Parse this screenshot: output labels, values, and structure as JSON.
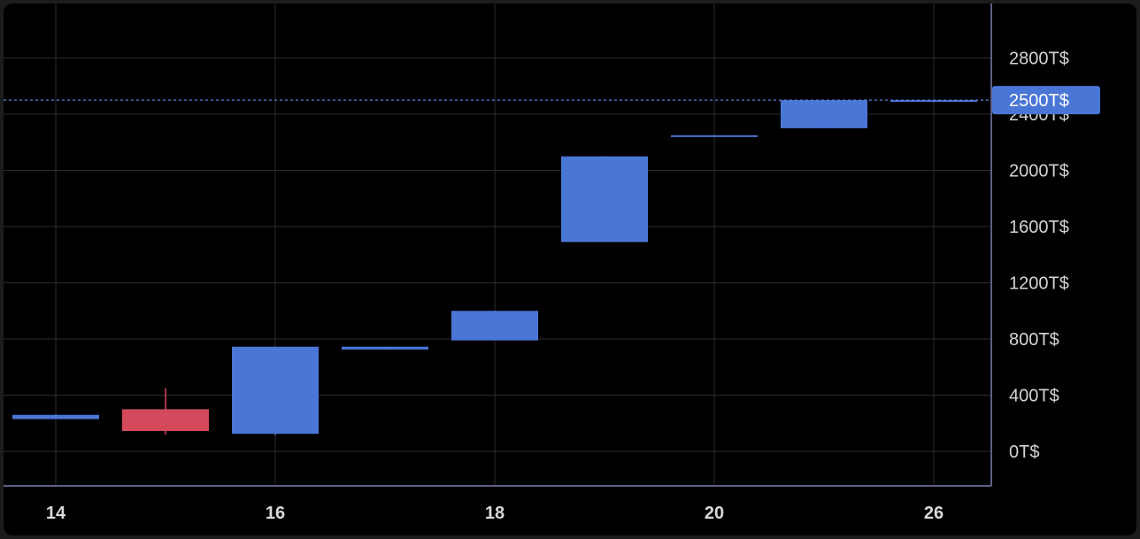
{
  "chart_data": {
    "type": "candlestick",
    "currency_suffix": "T$",
    "x_ticks": [
      "14",
      "16",
      "18",
      "20",
      "26"
    ],
    "y_ticks": [
      "0T$",
      "400T$",
      "800T$",
      "1200T$",
      "1600T$",
      "2000T$",
      "2400T$",
      "2800T$"
    ],
    "y_tick_values": [
      0,
      400,
      800,
      1200,
      1600,
      2000,
      2400,
      2800
    ],
    "ylim": [
      -250,
      3150
    ],
    "grid": true,
    "candles": [
      {
        "index": 0,
        "open": 230,
        "close": 260,
        "high": 260,
        "low": 230
      },
      {
        "index": 1,
        "open": 300,
        "close": 145,
        "high": 450,
        "low": 120
      },
      {
        "index": 2,
        "open": 125,
        "close": 745,
        "high": 745,
        "low": 115
      },
      {
        "index": 3,
        "open": 725,
        "close": 745,
        "high": 745,
        "low": 725
      },
      {
        "index": 4,
        "open": 790,
        "close": 1000,
        "high": 1000,
        "low": 790
      },
      {
        "index": 5,
        "open": 1490,
        "close": 2100,
        "high": 2100,
        "low": 1490
      },
      {
        "index": 6,
        "open": 2240,
        "close": 2250,
        "high": 2250,
        "low": 2240
      },
      {
        "index": 7,
        "open": 2300,
        "close": 2500,
        "high": 2500,
        "low": 2300
      },
      {
        "index": 8,
        "open": 2492,
        "close": 2500,
        "high": 2500,
        "low": 2492
      }
    ],
    "current_price": {
      "value": 2500,
      "label": "2500T$"
    },
    "colors": {
      "up": "#4a76d6",
      "down": "#d44a5c",
      "grid": "#2c2c30",
      "axis": "#7b7fb0",
      "price_line": "#5a7fe0"
    }
  }
}
